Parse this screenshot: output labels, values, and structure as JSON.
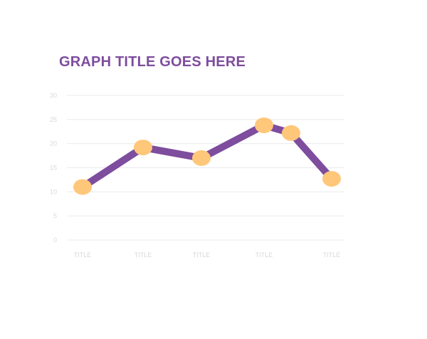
{
  "chart_data": {
    "type": "line",
    "title": "GRAPH TITLE GOES HERE",
    "xlabel": "",
    "ylabel": "",
    "categories": [
      "TITLE",
      "TITLE",
      "TITLE",
      "TITLE",
      "TITLE"
    ],
    "points": [
      {
        "x": 0,
        "y": 11
      },
      {
        "x": 1,
        "y": 19.2
      },
      {
        "x": 2,
        "y": 17
      },
      {
        "x": 3,
        "y": 23.8
      },
      {
        "x": 3.4,
        "y": 22.2
      },
      {
        "x": 4,
        "y": 12.7
      }
    ],
    "ylim": [
      0,
      30
    ],
    "yticks": [
      "0",
      "5",
      "10",
      "15",
      "20",
      "25",
      "30"
    ],
    "grid": true,
    "legend": "none",
    "colors": {
      "title": "#7e4d9e",
      "line": "#7e4d9e",
      "marker": "#ffc77a",
      "grid": "#ebebeb",
      "tick": "#d8d8d8"
    }
  }
}
